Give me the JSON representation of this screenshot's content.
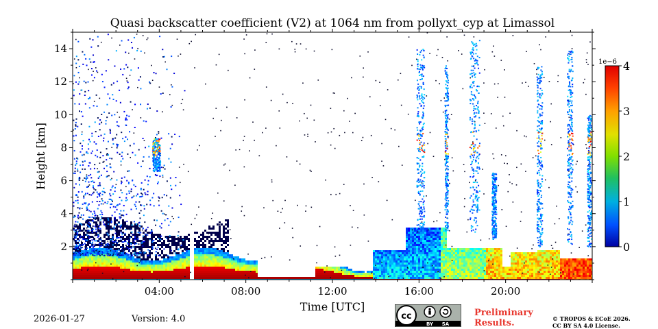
{
  "chart_data": {
    "type": "heatmap",
    "title": "Quasi backscatter coefficient (V2) at 1064 nm from pollyxt_cyp at Limassol",
    "xlabel": "Time [UTC]",
    "ylabel": "Height [km]",
    "x_range_hours": [
      0,
      24
    ],
    "y_range_km": [
      0,
      15
    ],
    "x_ticks": [
      {
        "value": 4,
        "label": "04:00"
      },
      {
        "value": 8,
        "label": "08:00"
      },
      {
        "value": 12,
        "label": "12:00"
      },
      {
        "value": 16,
        "label": "16:00"
      },
      {
        "value": 20,
        "label": "20:00"
      }
    ],
    "y_ticks": [
      {
        "value": 2,
        "label": "2"
      },
      {
        "value": 4,
        "label": "4"
      },
      {
        "value": 6,
        "label": "6"
      },
      {
        "value": 8,
        "label": "8"
      },
      {
        "value": 10,
        "label": "10"
      },
      {
        "value": 12,
        "label": "12"
      },
      {
        "value": 14,
        "label": "14"
      }
    ],
    "colorbar": {
      "range": [
        0,
        4
      ],
      "scale_label": "1e−6",
      "ticks": [
        "0",
        "1",
        "2",
        "3",
        "4"
      ],
      "colormap": "jet"
    },
    "features": [
      {
        "name": "boundary layer aerosol",
        "time_h": [
          0,
          13.8
        ],
        "height_km": [
          0.1,
          1.6
        ],
        "value_e6": 3.5
      },
      {
        "name": "aerosol layer afternoon",
        "time_h": [
          13.8,
          22.5
        ],
        "height_km": [
          0.1,
          3.0
        ],
        "value_e6": 1.5
      },
      {
        "name": "cirrus columns",
        "times_h": [
          16.1,
          18.7,
          21.5,
          23.0
        ],
        "height_km": [
          2,
          14
        ],
        "value_e6": 0.6
      }
    ]
  },
  "footer": {
    "date": "2026-01-27",
    "version": "Version: 4.0",
    "license_badge": {
      "cc": "cc",
      "by": "BY",
      "sa": "SA"
    },
    "preliminary_line1": "Preliminary",
    "preliminary_line2": "Results.",
    "copyright_line1": "© TROPOS & ECoE 2026.",
    "copyright_line2": "CC BY SA 4.0 License."
  },
  "colors": {
    "background": "#ffffff",
    "preliminary": "#e8382f"
  }
}
